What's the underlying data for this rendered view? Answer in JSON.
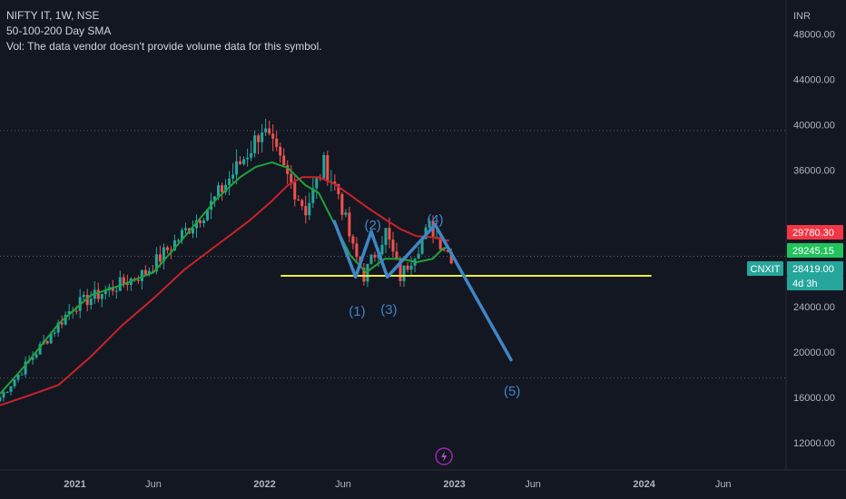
{
  "header": {
    "symbol_line": "NIFTY IT, 1W, NSE",
    "indicator_line": "50-100-200 Day SMA",
    "volume_line": "Vol: The data vendor doesn't provide volume data for this symbol."
  },
  "axis": {
    "currency": "INR",
    "y_ticks": [
      "48000.00",
      "44000.00",
      "40000.00",
      "36000.00",
      "24000.00",
      "20000.00",
      "16000.00",
      "12000.00"
    ],
    "x_ticks": [
      "2021",
      "Jun",
      "2022",
      "Jun",
      "2023",
      "Jun",
      "2024",
      "Jun"
    ]
  },
  "price_tags": [
    {
      "label": "29780.30",
      "value": 29780.3,
      "bg": "#f23645",
      "fg": "#ffffff"
    },
    {
      "label": "29245.15",
      "value": 29245.15,
      "bg": "#22ab94",
      "fg": "#ffffff",
      "alt_bg": "#4caf50"
    },
    {
      "label": "28419.00",
      "value": 28419.0,
      "bg": "#26a69a",
      "fg": "#ffffff"
    },
    {
      "label": "4d 3h",
      "bg": "#26a69a",
      "fg": "#ffffff"
    }
  ],
  "symbol_tag": {
    "label": "CNXIT",
    "bg": "#26a69a",
    "fg": "#ffffff"
  },
  "wave_labels": [
    "(1)",
    "(2)",
    "(3)",
    "(4)",
    "(5)"
  ],
  "colors": {
    "up": "#26a69a",
    "down": "#ef5350",
    "sma_fast": "#23a13b",
    "sma_slow": "#c8232c",
    "wave": "#3f86c6",
    "support": "#f0eb3c",
    "grid": "#2a2e39",
    "background": "#131722"
  },
  "chart_data": {
    "type": "line",
    "title": "NIFTY IT, 1W, NSE",
    "ylabel": "INR",
    "ylim": [
      9600,
      51000
    ],
    "xlim": [
      "2020-08-10",
      "2024-09-30"
    ],
    "grid": true,
    "support_level": {
      "value": 26700,
      "from": "2022-02-01",
      "to": "2024-01-15"
    },
    "dotted_levels": [
      39500,
      17700,
      28419
    ],
    "series": [
      {
        "name": "SMA fast",
        "x": [
          "2020-08-10",
          "2020-10-01",
          "2020-12-01",
          "2021-02-01",
          "2021-04-01",
          "2021-06-01",
          "2021-08-01",
          "2021-10-01",
          "2021-11-15",
          "2021-12-15",
          "2022-01-15",
          "2022-02-15",
          "2022-03-20",
          "2022-04-15",
          "2022-05-15",
          "2022-06-15",
          "2022-07-15",
          "2022-08-20",
          "2022-09-20",
          "2022-10-20",
          "2022-11-20",
          "2022-12-10",
          "2022-12-22"
        ],
        "values": [
          16300,
          19000,
          22500,
          25000,
          25900,
          27000,
          30200,
          33500,
          35400,
          36300,
          36700,
          36200,
          34700,
          34000,
          31300,
          28500,
          27000,
          28200,
          28200,
          27900,
          28200,
          29100,
          29245
        ]
      },
      {
        "name": "SMA slow",
        "x": [
          "2020-08-10",
          "2020-10-01",
          "2020-12-01",
          "2021-02-01",
          "2021-04-01",
          "2021-06-01",
          "2021-08-01",
          "2021-10-01",
          "2021-12-01",
          "2022-01-15",
          "2022-02-15",
          "2022-03-15",
          "2022-04-15",
          "2022-05-15",
          "2022-06-15",
          "2022-07-15",
          "2022-08-20",
          "2022-09-20",
          "2022-10-20",
          "2022-11-20",
          "2022-12-22"
        ],
        "values": [
          15300,
          16100,
          17100,
          19600,
          22300,
          24700,
          27300,
          29400,
          31500,
          33300,
          34700,
          35400,
          35400,
          34800,
          33800,
          32800,
          31700,
          30800,
          30200,
          30100,
          29780
        ]
      },
      {
        "name": "Wave",
        "x": [
          "2022-05-15",
          "2022-06-25",
          "2022-07-25",
          "2022-08-25",
          "2022-11-25",
          "2023-04-20"
        ],
        "values": [
          31500,
          26600,
          30600,
          26600,
          31200,
          19300
        ]
      }
    ],
    "candles": {
      "x_start": "2020-08-10",
      "x_end": "2022-12-26",
      "interval": "1W",
      "key_values": [
        16000,
        24000,
        27000,
        33000,
        38000,
        39800,
        36000,
        32500,
        36500,
        34000,
        29000,
        26700,
        30600,
        26600,
        31000,
        28419
      ]
    }
  }
}
